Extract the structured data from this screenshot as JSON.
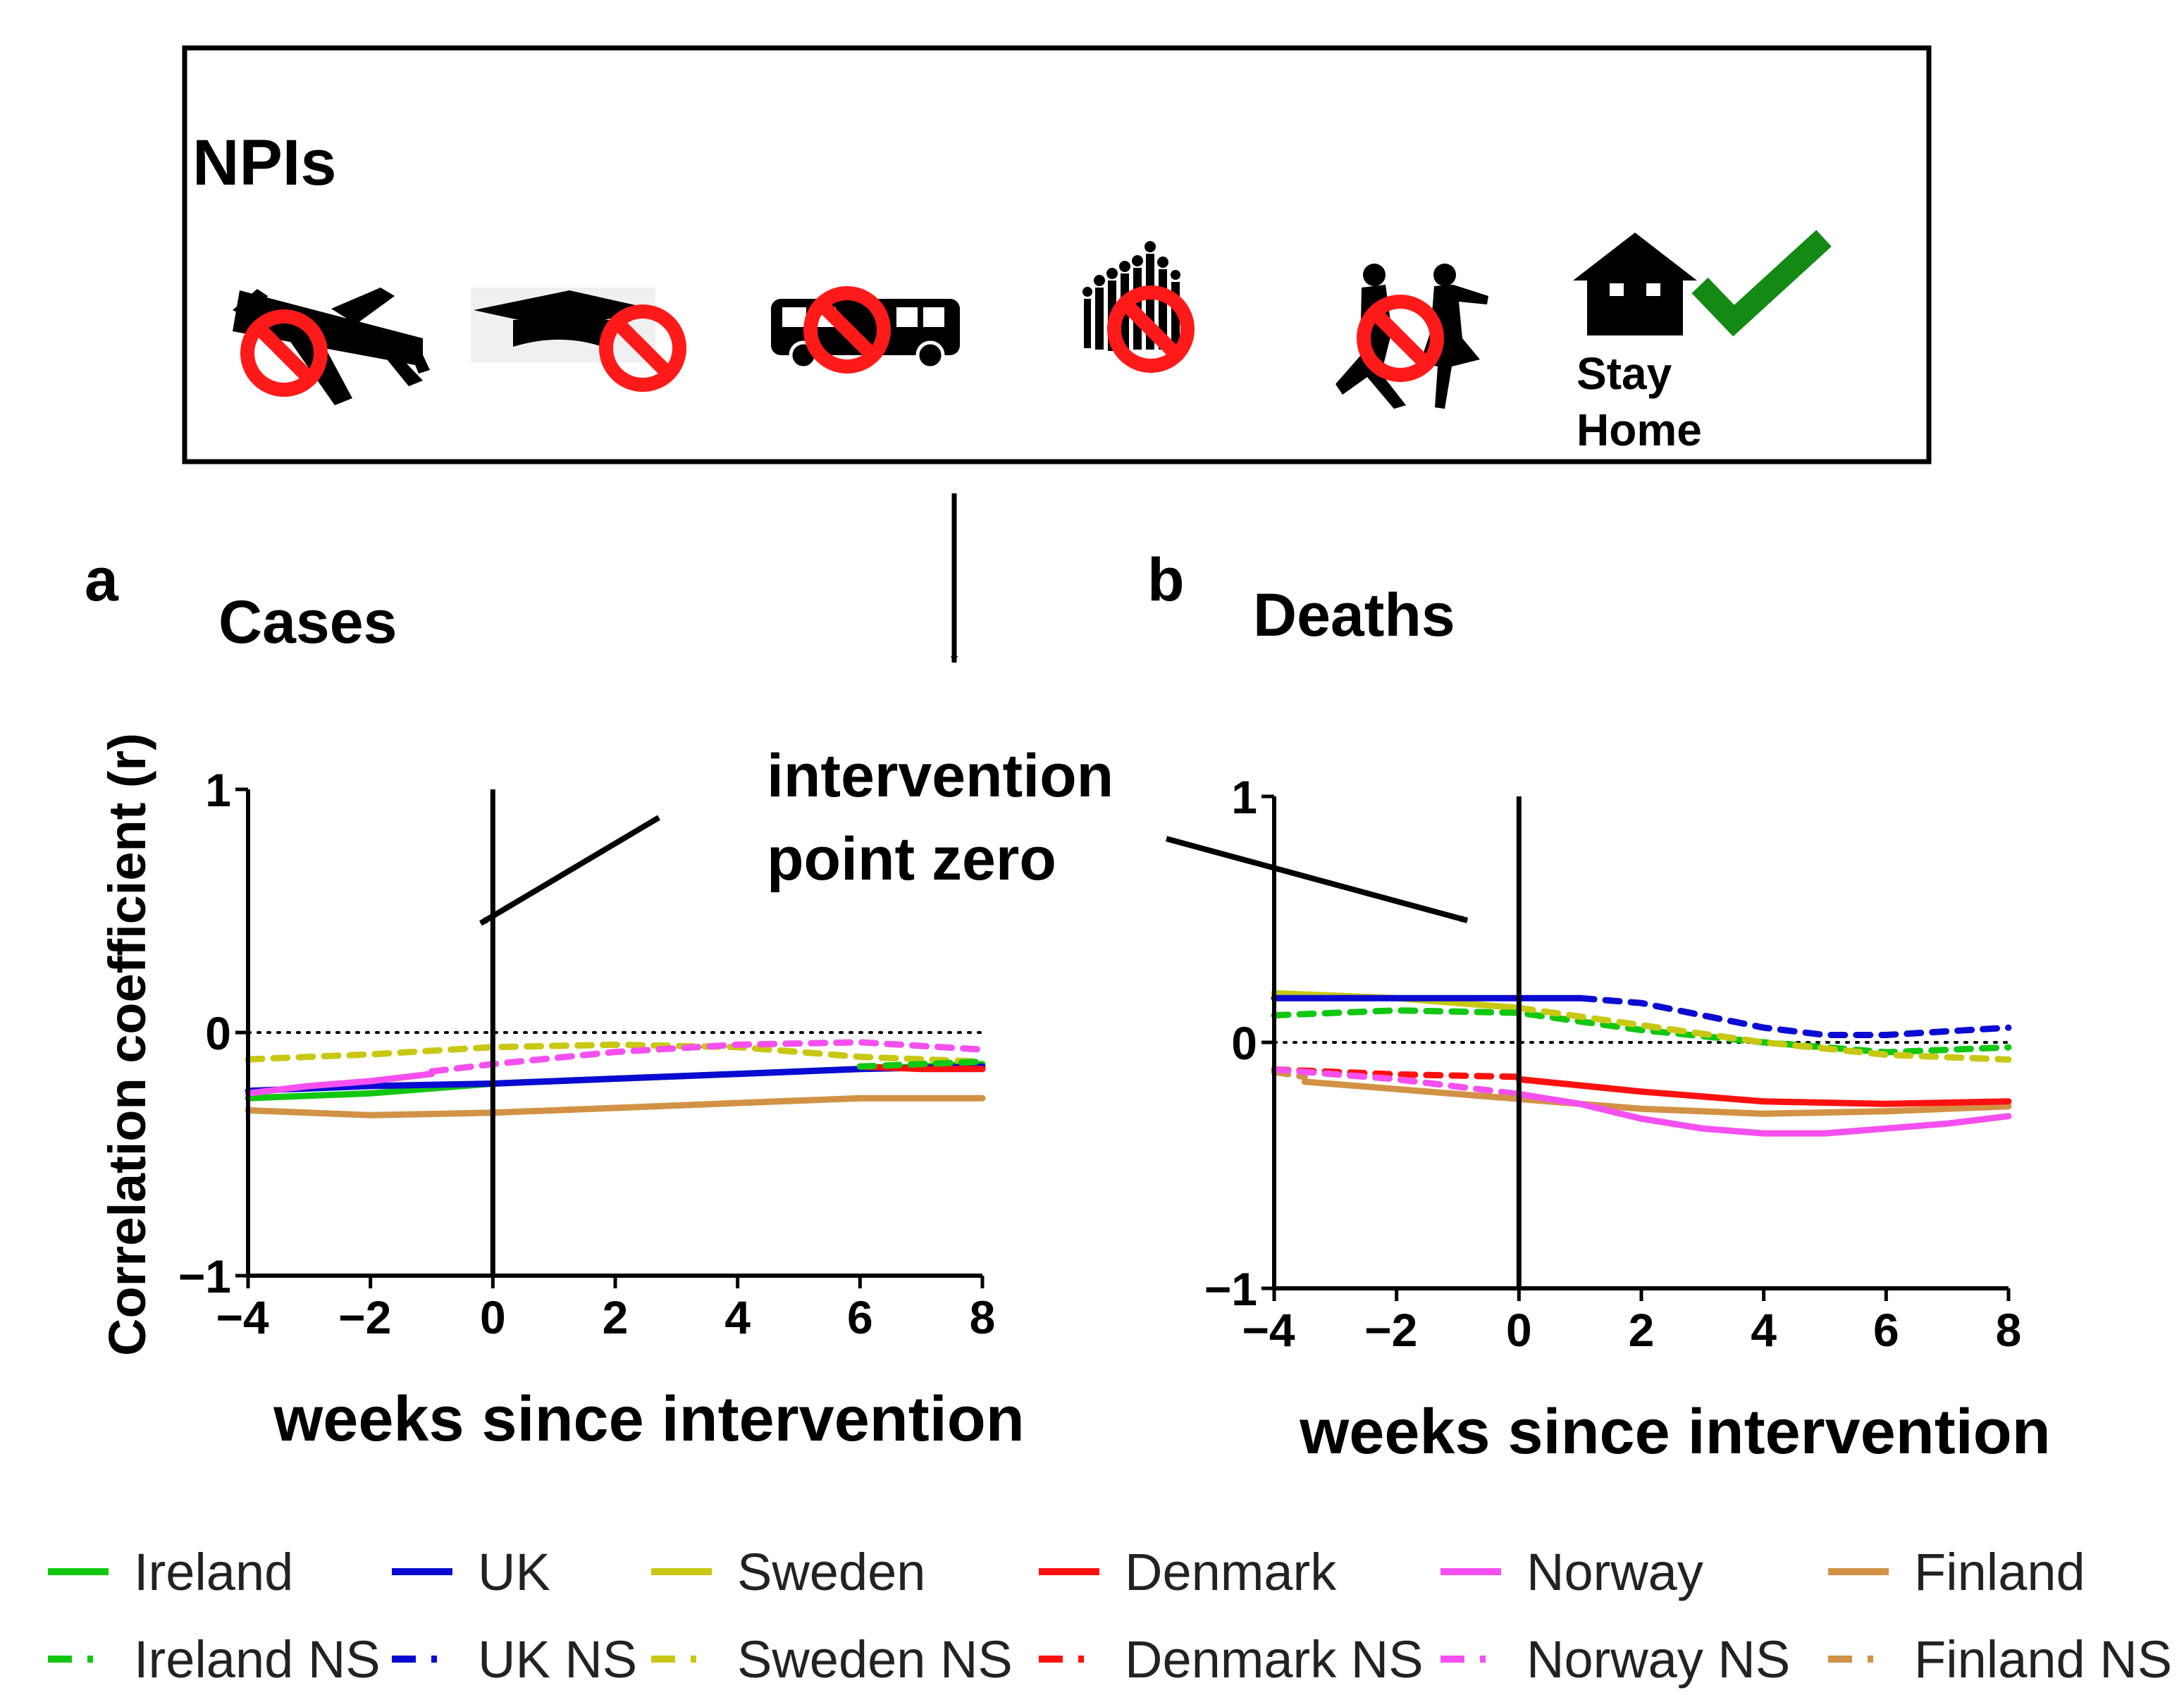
{
  "npi_panel": {
    "title": "NPIs",
    "icons": [
      "airplane-icon",
      "graduation-cap-icon",
      "bus-icon",
      "crowd-icon",
      "dancing-couple-icon",
      "house-icon"
    ],
    "stay_home_line1": "Stay",
    "stay_home_line2": "Home",
    "colors": {
      "prohibit": "#ff1a1a",
      "check": "#138a13"
    }
  },
  "annotation": {
    "line1": "intervention",
    "line2": "point zero"
  },
  "chart_data": [
    {
      "panel": "a",
      "title": "Cases",
      "type": "line",
      "xlabel": "weeks since intervention",
      "ylabel": "Correlation coefficient (r)",
      "xlim": [
        -4,
        8
      ],
      "ylim": [
        -1,
        1
      ],
      "xticks": [
        -4,
        -2,
        0,
        2,
        4,
        6,
        8
      ],
      "xtick_labels": [
        "−4",
        "−2",
        "0",
        "2",
        "4",
        "6",
        "8"
      ],
      "yticks": [
        -1,
        0,
        1
      ],
      "ytick_labels": [
        "−1",
        "0",
        "1"
      ],
      "intervention_x": 0,
      "series": [
        {
          "name": "Finland",
          "color": "#d29245",
          "dashed": false,
          "x": [
            -4,
            -2,
            0,
            2,
            4,
            6,
            8
          ],
          "y": [
            -0.32,
            -0.34,
            -0.33,
            -0.31,
            -0.29,
            -0.27,
            -0.27
          ]
        },
        {
          "name": "Ireland",
          "color": "#12c712",
          "dashed": false,
          "x": [
            -4,
            -2,
            0,
            2,
            4,
            6,
            8
          ],
          "y": [
            -0.27,
            -0.25,
            -0.21,
            -0.19,
            -0.17,
            -0.15,
            -0.13
          ]
        },
        {
          "name": "UK",
          "color": "#0a0ad2",
          "dashed": false,
          "x": [
            -4,
            -2,
            0,
            2,
            4,
            6,
            8
          ],
          "y": [
            -0.24,
            -0.22,
            -0.21,
            -0.19,
            -0.17,
            -0.15,
            -0.14
          ]
        },
        {
          "name": "Norway",
          "color": "#f550ef",
          "dashed": false,
          "x": [
            -4,
            -3,
            -2,
            -1
          ],
          "y": [
            -0.25,
            -0.22,
            -0.2,
            -0.17
          ]
        },
        {
          "name": "Denmark",
          "color": "#ff1010",
          "dashed": false,
          "x": [
            6,
            7,
            8
          ],
          "y": [
            -0.14,
            -0.15,
            -0.15
          ]
        },
        {
          "name": "Sweden NS",
          "color": "#c8c814",
          "dashed": true,
          "x": [
            -4,
            -2,
            0,
            2,
            4,
            6,
            8
          ],
          "y": [
            -0.11,
            -0.09,
            -0.06,
            -0.05,
            -0.06,
            -0.1,
            -0.12
          ]
        },
        {
          "name": "Norway NS",
          "color": "#f550ef",
          "dashed": true,
          "x": [
            -1,
            0,
            2,
            4,
            6,
            8
          ],
          "y": [
            -0.16,
            -0.13,
            -0.08,
            -0.05,
            -0.04,
            -0.07
          ]
        },
        {
          "name": "Ireland NS",
          "color": "#12c712",
          "dashed": true,
          "x": [
            6,
            7,
            8
          ],
          "y": [
            -0.14,
            -0.13,
            -0.12
          ]
        }
      ]
    },
    {
      "panel": "b",
      "title": "Deaths",
      "type": "line",
      "xlabel": "weeks since intervention",
      "ylabel": "",
      "xlim": [
        -4,
        8
      ],
      "ylim": [
        -1,
        1
      ],
      "xticks": [
        -4,
        -2,
        0,
        2,
        4,
        6,
        8
      ],
      "xtick_labels": [
        "−4",
        "−2",
        "0",
        "2",
        "4",
        "6",
        "8"
      ],
      "yticks": [
        -1,
        0,
        1
      ],
      "ytick_labels": [
        "−1",
        "0",
        "1"
      ],
      "intervention_x": 0,
      "series": [
        {
          "name": "Sweden",
          "color": "#c8c814",
          "dashed": false,
          "x": [
            -4,
            -2,
            0
          ],
          "y": [
            0.2,
            0.18,
            0.14
          ]
        },
        {
          "name": "UK",
          "color": "#0a0ad2",
          "dashed": false,
          "x": [
            -4,
            -2,
            0,
            1
          ],
          "y": [
            0.18,
            0.18,
            0.18,
            0.18
          ]
        },
        {
          "name": "Ireland NS",
          "color": "#12c712",
          "dashed": true,
          "x": [
            -4,
            -2,
            0,
            2,
            4,
            6,
            8
          ],
          "y": [
            0.11,
            0.13,
            0.12,
            0.05,
            0,
            -0.04,
            -0.02
          ]
        },
        {
          "name": "UK NS",
          "color": "#0a0ad2",
          "dashed": true,
          "x": [
            1,
            2,
            3,
            4,
            5,
            6,
            8
          ],
          "y": [
            0.18,
            0.16,
            0.11,
            0.06,
            0.03,
            0.03,
            0.06
          ]
        },
        {
          "name": "Sweden NS",
          "color": "#c8c814",
          "dashed": true,
          "x": [
            0,
            2,
            4,
            6,
            8
          ],
          "y": [
            0.14,
            0.07,
            0,
            -0.05,
            -0.07
          ]
        },
        {
          "name": "Denmark NS",
          "color": "#ff1010",
          "dashed": true,
          "x": [
            -4,
            -2,
            0
          ],
          "y": [
            -0.11,
            -0.13,
            -0.14
          ]
        },
        {
          "name": "Finland NS",
          "color": "#d29245",
          "dashed": true,
          "x": [
            -4,
            -3.5
          ],
          "y": [
            -0.12,
            -0.14
          ]
        },
        {
          "name": "Norway NS",
          "color": "#f550ef",
          "dashed": true,
          "x": [
            -4,
            -2,
            0
          ],
          "y": [
            -0.11,
            -0.15,
            -0.21
          ]
        },
        {
          "name": "Finland",
          "color": "#d29245",
          "dashed": false,
          "x": [
            -3.5,
            -2,
            0,
            2,
            4,
            6,
            8
          ],
          "y": [
            -0.16,
            -0.19,
            -0.23,
            -0.27,
            -0.29,
            -0.28,
            -0.26
          ]
        },
        {
          "name": "Denmark",
          "color": "#ff1010",
          "dashed": false,
          "x": [
            0,
            2,
            4,
            6,
            8
          ],
          "y": [
            -0.15,
            -0.2,
            -0.24,
            -0.25,
            -0.24
          ]
        },
        {
          "name": "Norway",
          "color": "#f550ef",
          "dashed": false,
          "x": [
            0,
            1,
            2,
            3,
            4,
            5,
            6,
            7,
            8
          ],
          "y": [
            -0.21,
            -0.25,
            -0.31,
            -0.35,
            -0.37,
            -0.37,
            -0.35,
            -0.33,
            -0.3
          ]
        }
      ]
    }
  ],
  "legend": [
    {
      "label": "Ireland",
      "color": "#12c712",
      "dashed": false
    },
    {
      "label": "UK",
      "color": "#0a0ad2",
      "dashed": false
    },
    {
      "label": "Sweden",
      "color": "#c8c814",
      "dashed": false
    },
    {
      "label": "Denmark",
      "color": "#ff1010",
      "dashed": false
    },
    {
      "label": "Norway",
      "color": "#f550ef",
      "dashed": false
    },
    {
      "label": "Finland",
      "color": "#d29245",
      "dashed": false
    },
    {
      "label": "Ireland NS",
      "color": "#12c712",
      "dashed": true
    },
    {
      "label": "UK NS",
      "color": "#0a0ad2",
      "dashed": true
    },
    {
      "label": "Sweden NS",
      "color": "#c8c814",
      "dashed": true
    },
    {
      "label": "Denmark NS",
      "color": "#ff1010",
      "dashed": true
    },
    {
      "label": "Norway NS",
      "color": "#f550ef",
      "dashed": true
    },
    {
      "label": "Finland NS",
      "color": "#d29245",
      "dashed": true
    }
  ]
}
